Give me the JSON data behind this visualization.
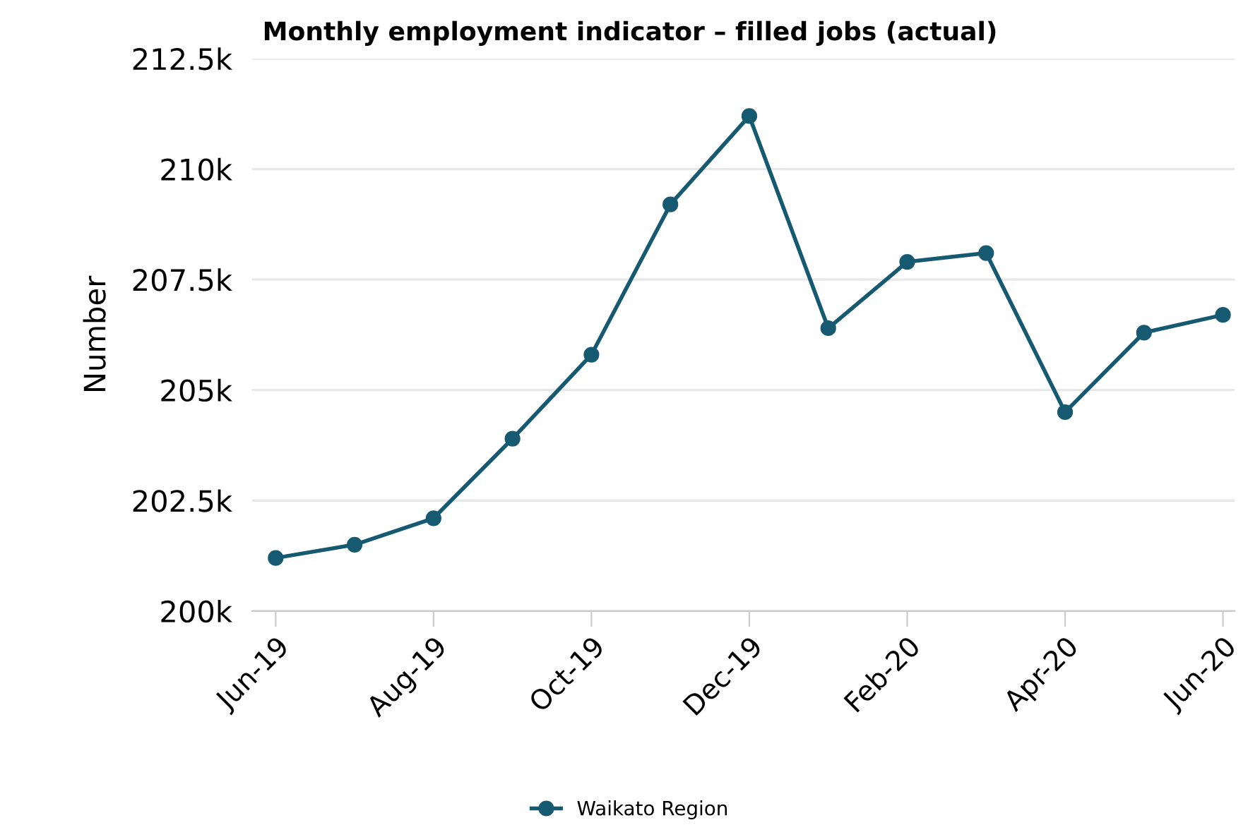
{
  "chart_data": {
    "type": "line",
    "title": "Monthly employment indicator – filled jobs (actual)",
    "ylabel": "Number",
    "categories": [
      "Jun-19",
      null,
      "Aug-19",
      null,
      "Oct-19",
      null,
      "Dec-19",
      null,
      "Feb-20",
      null,
      "Apr-20",
      null,
      "Jun-20"
    ],
    "series": [
      {
        "name": "Waikato Region",
        "color": "#165a72",
        "values": [
          201200,
          201500,
          202100,
          203900,
          205800,
          209200,
          211200,
          206400,
          207900,
          208100,
          204500,
          206300,
          206700
        ]
      }
    ],
    "ylim": [
      200000,
      212500
    ],
    "yticks": [
      {
        "value": 200000,
        "label": "200k"
      },
      {
        "value": 202500,
        "label": "202.5k"
      },
      {
        "value": 205000,
        "label": "205k"
      },
      {
        "value": 207500,
        "label": "207.5k"
      },
      {
        "value": 210000,
        "label": "210k"
      },
      {
        "value": 212500,
        "label": "212.5k"
      }
    ],
    "grid": "y",
    "legend": "bottom",
    "marker": "circle",
    "line_style": "solid"
  }
}
